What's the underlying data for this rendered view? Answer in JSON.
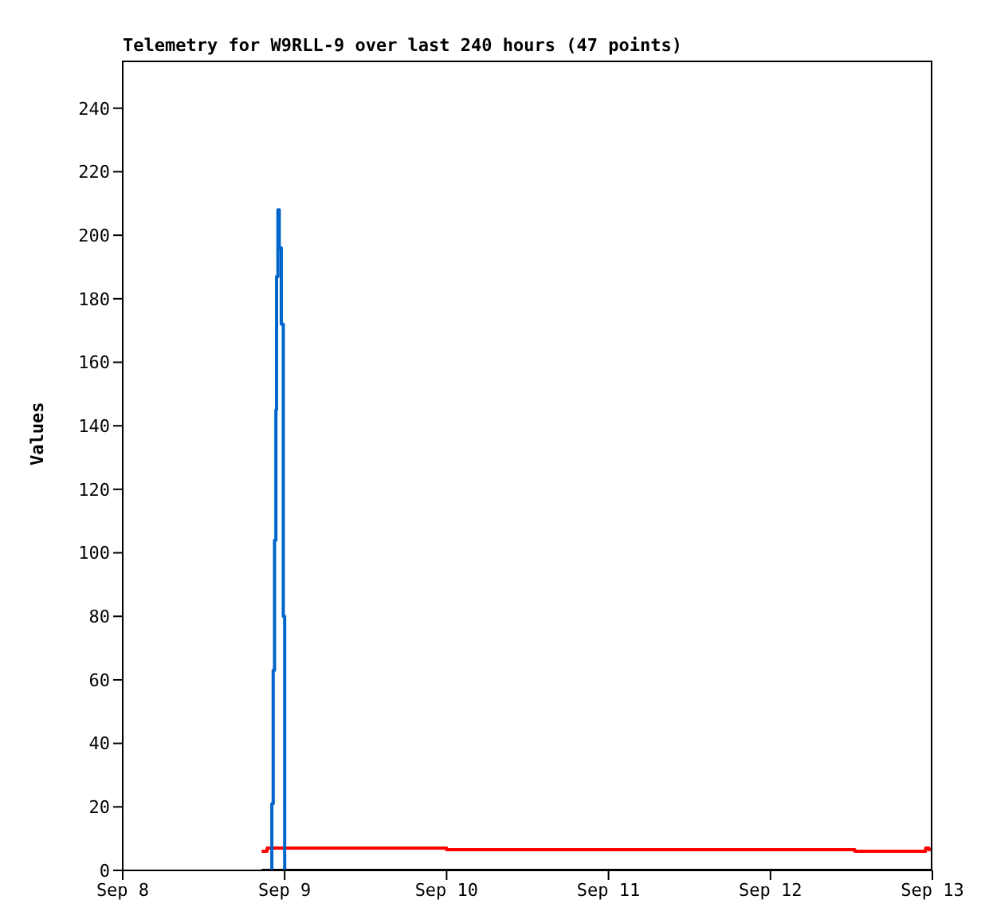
{
  "chart_data": {
    "type": "step",
    "title": "Telemetry for W9RLL-9 over last 240 hours (47 points)",
    "ylabel": "Values",
    "xlim": [
      "--09-08",
      "--09-13"
    ],
    "xticks": [
      {
        "value": "--09-08",
        "label": "Sep 8"
      },
      {
        "value": "--09-09",
        "label": "Sep 9"
      },
      {
        "value": "--09-10",
        "label": "Sep 10"
      },
      {
        "value": "--09-11",
        "label": "Sep 11"
      },
      {
        "value": "--09-12",
        "label": "Sep 12"
      },
      {
        "value": "--09-13",
        "label": "Sep 13"
      }
    ],
    "ylim": [
      0,
      255
    ],
    "yticks": [
      0,
      20,
      40,
      60,
      80,
      100,
      120,
      140,
      160,
      180,
      200,
      220,
      240
    ],
    "series": [
      {
        "color": "#000000",
        "x": [
          "--09-08T20:36",
          "--09-13T00:00"
        ],
        "values": [
          0,
          0
        ]
      },
      {
        "color": "#ff0000",
        "x": [
          "--09-08T20:36",
          "--09-08T21:24",
          "--09-09T23:30",
          "--09-10T00:00",
          "--09-12T12:00",
          "--09-12T12:30",
          "--09-12T22:30",
          "--09-12T23:00",
          "--09-12T23:30",
          "--09-13T00:00"
        ],
        "values": [
          6,
          7,
          7,
          6.5,
          6.5,
          6,
          6,
          7,
          6.5,
          7
        ]
      },
      {
        "color": "#0066cc",
        "x": [
          "--09-08T21:54",
          "--09-08T22:06",
          "--09-08T22:18",
          "--09-08T22:30",
          "--09-08T22:42",
          "--09-08T22:48",
          "--09-08T23:00",
          "--09-08T23:12",
          "--09-08T23:30",
          "--09-08T23:48",
          "--09-09T00:00"
        ],
        "values": [
          0,
          21,
          63,
          104,
          145,
          187,
          208,
          196,
          172,
          80,
          0
        ]
      }
    ]
  }
}
